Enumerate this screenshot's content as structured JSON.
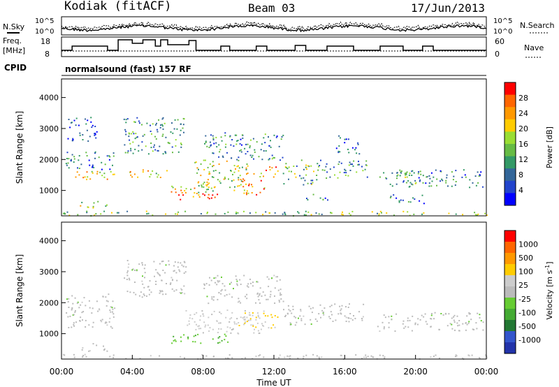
{
  "header": {
    "station": "Kodiak (fitACF)",
    "beam": "Beam 03",
    "date": "17/Jun/2013"
  },
  "top_panels": {
    "nsky_label": "N.Sky",
    "nsearch_label": "N.Search",
    "noise_ticks": [
      "10^5",
      "10^0"
    ],
    "freq_label_line1": "Freq.",
    "freq_label_line2": "[MHz]",
    "freq_ticks": [
      "18",
      "8"
    ],
    "nave_label": "Nave",
    "nave_ticks": [
      "60",
      "0"
    ],
    "cpid_label": "CPID",
    "cpid_text": "normalsound (fast) 157 RF"
  },
  "chart_data": [
    {
      "type": "heatmap",
      "name": "power",
      "ylabel": "Slant Range [km]",
      "xlabel": "",
      "ylim": [
        180,
        4600
      ],
      "yticks": [
        "1000",
        "2000",
        "3000",
        "4000"
      ],
      "xlim": [
        0,
        24
      ],
      "colorbar": {
        "label": "Power [dB]",
        "ticks": [
          "28",
          "24",
          "20",
          "16",
          "12",
          "8",
          "4"
        ],
        "colors": [
          "#0000ff",
          "#2244cc",
          "#336699",
          "#339966",
          "#66bb44",
          "#99dd33",
          "#ffcc00",
          "#ff9900",
          "#ff6600",
          "#ff0000"
        ],
        "range": [
          0,
          30
        ]
      },
      "patches": [
        {
          "t": [
            0.2,
            3.0
          ],
          "r": [
            1350,
            1650
          ],
          "v": 20
        },
        {
          "t": [
            0.2,
            3.0
          ],
          "r": [
            1700,
            2300
          ],
          "v": 9
        },
        {
          "t": [
            1.0,
            2.6
          ],
          "r": [
            450,
            700
          ],
          "v": 16
        },
        {
          "t": [
            0.3,
            2.0
          ],
          "r": [
            2600,
            3400
          ],
          "v": 5
        },
        {
          "t": [
            3.8,
            4.6
          ],
          "r": [
            1300,
            1700
          ],
          "v": 20
        },
        {
          "t": [
            3.5,
            7.0
          ],
          "r": [
            2200,
            3400
          ],
          "v": 10
        },
        {
          "t": [
            4.8,
            6.0
          ],
          "r": [
            1400,
            1700
          ],
          "v": 18
        },
        {
          "t": [
            6.0,
            8.2
          ],
          "r": [
            900,
            1300
          ],
          "v": 18
        },
        {
          "t": [
            6.5,
            9.0
          ],
          "r": [
            700,
            950
          ],
          "v": 26
        },
        {
          "t": [
            7.5,
            10.5
          ],
          "r": [
            1000,
            2000
          ],
          "v": 16
        },
        {
          "t": [
            10.0,
            11.5
          ],
          "r": [
            850,
            1600
          ],
          "v": 22
        },
        {
          "t": [
            11.5,
            12.3
          ],
          "r": [
            1400,
            1800
          ],
          "v": 27
        },
        {
          "t": [
            8.0,
            12.5
          ],
          "r": [
            2000,
            2900
          ],
          "v": 9
        },
        {
          "t": [
            12.5,
            14.5
          ],
          "r": [
            1200,
            2000
          ],
          "v": 12
        },
        {
          "t": [
            13.5,
            15.0
          ],
          "r": [
            700,
            900
          ],
          "v": 8
        },
        {
          "t": [
            14.5,
            17.3
          ],
          "r": [
            1400,
            2000
          ],
          "v": 10
        },
        {
          "t": [
            15.5,
            16.8
          ],
          "r": [
            2200,
            2800
          ],
          "v": 5
        },
        {
          "t": [
            17.8,
            20.0
          ],
          "r": [
            1100,
            1600
          ],
          "v": 12
        },
        {
          "t": [
            19.0,
            23.8
          ],
          "r": [
            1100,
            1700
          ],
          "v": 8
        },
        {
          "t": [
            18.5,
            20.5
          ],
          "r": [
            600,
            900
          ],
          "v": 6
        },
        {
          "t": [
            0.0,
            24.0
          ],
          "r": [
            200,
            350
          ],
          "v": 14
        }
      ]
    },
    {
      "type": "heatmap",
      "name": "velocity",
      "ylabel": "Slant Range [km]",
      "xlabel": "Time UT",
      "ylim": [
        180,
        4600
      ],
      "yticks": [
        "1000",
        "2000",
        "3000",
        "4000"
      ],
      "xlim": [
        0,
        24
      ],
      "xticks": [
        "00:00",
        "04:00",
        "08:00",
        "12:00",
        "16:00",
        "20:00",
        "00:00"
      ],
      "colorbar": {
        "label": "Velocity [m s-1]",
        "ticks": [
          "1000",
          "500",
          "100",
          "25",
          "-25",
          "-100",
          "-500",
          "-1000"
        ],
        "colors": [
          "#2233aa",
          "#3355cc",
          "#227733",
          "#44aa33",
          "#66cc33",
          "#bbbbbb",
          "#cccccc",
          "#ffcc00",
          "#ff9900",
          "#ff6600",
          "#ff0000"
        ],
        "range": [
          -1200,
          1200
        ]
      },
      "patches": [
        {
          "t": [
            0.2,
            3.0
          ],
          "r": [
            1200,
            2300
          ],
          "v": 0
        },
        {
          "t": [
            3.5,
            7.0
          ],
          "r": [
            2200,
            3400
          ],
          "v": 0
        },
        {
          "t": [
            6.0,
            9.5
          ],
          "r": [
            700,
            1000
          ],
          "v": -300
        },
        {
          "t": [
            7.0,
            11.5
          ],
          "r": [
            1000,
            1800
          ],
          "v": 200
        },
        {
          "t": [
            10.0,
            12.2
          ],
          "r": [
            1200,
            1700
          ],
          "v": 400
        },
        {
          "t": [
            8.0,
            12.5
          ],
          "r": [
            2000,
            2900
          ],
          "v": 0
        },
        {
          "t": [
            12.5,
            14.5
          ],
          "r": [
            1300,
            2000
          ],
          "v": 0
        },
        {
          "t": [
            14.5,
            17.3
          ],
          "r": [
            1400,
            2000
          ],
          "v": 0
        },
        {
          "t": [
            17.8,
            23.8
          ],
          "r": [
            1100,
            1700
          ],
          "v": 0
        },
        {
          "t": [
            1.0,
            2.6
          ],
          "r": [
            450,
            700
          ],
          "v": 0
        },
        {
          "t": [
            0.0,
            24.0
          ],
          "r": [
            200,
            350
          ],
          "v": 60
        }
      ]
    }
  ]
}
